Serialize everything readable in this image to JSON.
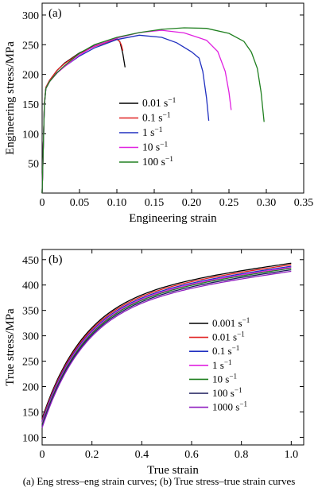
{
  "caption": "(a)  Eng  stress–eng strain curves; (b) True stress–true strain curves",
  "chart_data": [
    {
      "type": "line",
      "panel_label": "(a)",
      "xlabel": "Engineering strain",
      "ylabel": "Engineering stress/MPa",
      "xlim": [
        0,
        0.35
      ],
      "ylim": [
        0,
        320
      ],
      "xticks": [
        0,
        0.05,
        0.1,
        0.15,
        0.2,
        0.25,
        0.3,
        0.35
      ],
      "xtick_labels": [
        "0",
        "0.05",
        "0.10",
        "0.15",
        "0.20",
        "0.25",
        "0.30",
        "0.35"
      ],
      "yticks": [
        50,
        100,
        150,
        200,
        250,
        300
      ],
      "ytick_labels": [
        "50",
        "100",
        "150",
        "200",
        "250",
        "300"
      ],
      "grid": false,
      "legend_position": "center",
      "series": [
        {
          "name": "0.01",
          "unit": "s",
          "exp": "−1",
          "color": "#000000",
          "x": [
            0,
            0.003,
            0.005,
            0.01,
            0.02,
            0.03,
            0.05,
            0.07,
            0.09,
            0.1,
            0.104,
            0.108,
            0.111
          ],
          "y": [
            0,
            150,
            178,
            190,
            206,
            218,
            236,
            249,
            257,
            260,
            255,
            235,
            212
          ]
        },
        {
          "name": "0.1",
          "unit": "s",
          "exp": "−1",
          "color": "#e02020",
          "x": [
            0,
            0.003,
            0.005,
            0.01,
            0.02,
            0.03,
            0.05,
            0.07,
            0.09,
            0.1,
            0.103,
            0.106,
            0.108
          ],
          "y": [
            0,
            150,
            178,
            190,
            206,
            218,
            236,
            248,
            256,
            258,
            257,
            250,
            240
          ]
        },
        {
          "name": "1",
          "unit": "s",
          "exp": "−1",
          "color": "#2030c0",
          "x": [
            0,
            0.003,
            0.005,
            0.01,
            0.02,
            0.03,
            0.05,
            0.07,
            0.1,
            0.13,
            0.16,
            0.18,
            0.2,
            0.21,
            0.215,
            0.22,
            0.223
          ],
          "y": [
            0,
            148,
            176,
            188,
            203,
            214,
            232,
            245,
            258,
            265,
            262,
            254,
            239,
            228,
            205,
            160,
            122
          ]
        },
        {
          "name": "10",
          "unit": "s",
          "exp": "−1",
          "color": "#e020e0",
          "x": [
            0,
            0.003,
            0.005,
            0.01,
            0.02,
            0.03,
            0.05,
            0.07,
            0.1,
            0.13,
            0.16,
            0.19,
            0.22,
            0.235,
            0.245,
            0.25,
            0.253
          ],
          "y": [
            0,
            148,
            176,
            188,
            203,
            214,
            233,
            247,
            260,
            270,
            275,
            271,
            258,
            238,
            205,
            170,
            140
          ]
        },
        {
          "name": "100",
          "unit": "s",
          "exp": "−1",
          "color": "#208020",
          "x": [
            0,
            0.003,
            0.005,
            0.01,
            0.02,
            0.03,
            0.05,
            0.07,
            0.1,
            0.13,
            0.16,
            0.19,
            0.22,
            0.25,
            0.27,
            0.28,
            0.288,
            0.293,
            0.297
          ],
          "y": [
            0,
            148,
            176,
            188,
            204,
            215,
            235,
            249,
            262,
            271,
            277,
            279,
            277,
            268,
            255,
            238,
            210,
            170,
            120
          ]
        }
      ]
    },
    {
      "type": "line",
      "panel_label": "(b)",
      "xlabel": "True strain",
      "ylabel": "True stress/MPa",
      "xlim": [
        0,
        1.05
      ],
      "ylim": [
        85,
        470
      ],
      "xticks": [
        0,
        0.2,
        0.4,
        0.6,
        0.8,
        1.0
      ],
      "xtick_labels": [
        "0",
        "0.2",
        "0.4",
        "0.6",
        "0.8",
        "1.0"
      ],
      "yticks": [
        100,
        150,
        200,
        250,
        300,
        350,
        400,
        450
      ],
      "ytick_labels": [
        "100",
        "150",
        "200",
        "250",
        "300",
        "350",
        "400",
        "450"
      ],
      "grid": false,
      "legend_position": "right",
      "series": [
        {
          "name": "0.001",
          "unit": "s",
          "exp": "−1",
          "color": "#000000",
          "start": 137,
          "end": 443
        },
        {
          "name": "0.01",
          "unit": "s",
          "exp": "−1",
          "color": "#e02020",
          "start": 134,
          "end": 440
        },
        {
          "name": "0.1",
          "unit": "s",
          "exp": "−1",
          "color": "#2030c0",
          "start": 131,
          "end": 437
        },
        {
          "name": "1",
          "unit": "s",
          "exp": "−1",
          "color": "#e020e0",
          "start": 128,
          "end": 435
        },
        {
          "name": "10",
          "unit": "s",
          "exp": "−1",
          "color": "#208020",
          "start": 125,
          "end": 433
        },
        {
          "name": "100",
          "unit": "s",
          "exp": "−1",
          "color": "#1a1a5a",
          "start": 122,
          "end": 430
        },
        {
          "name": "1000",
          "unit": "s",
          "exp": "−1",
          "color": "#9020c0",
          "start": 119,
          "end": 427
        }
      ]
    }
  ]
}
